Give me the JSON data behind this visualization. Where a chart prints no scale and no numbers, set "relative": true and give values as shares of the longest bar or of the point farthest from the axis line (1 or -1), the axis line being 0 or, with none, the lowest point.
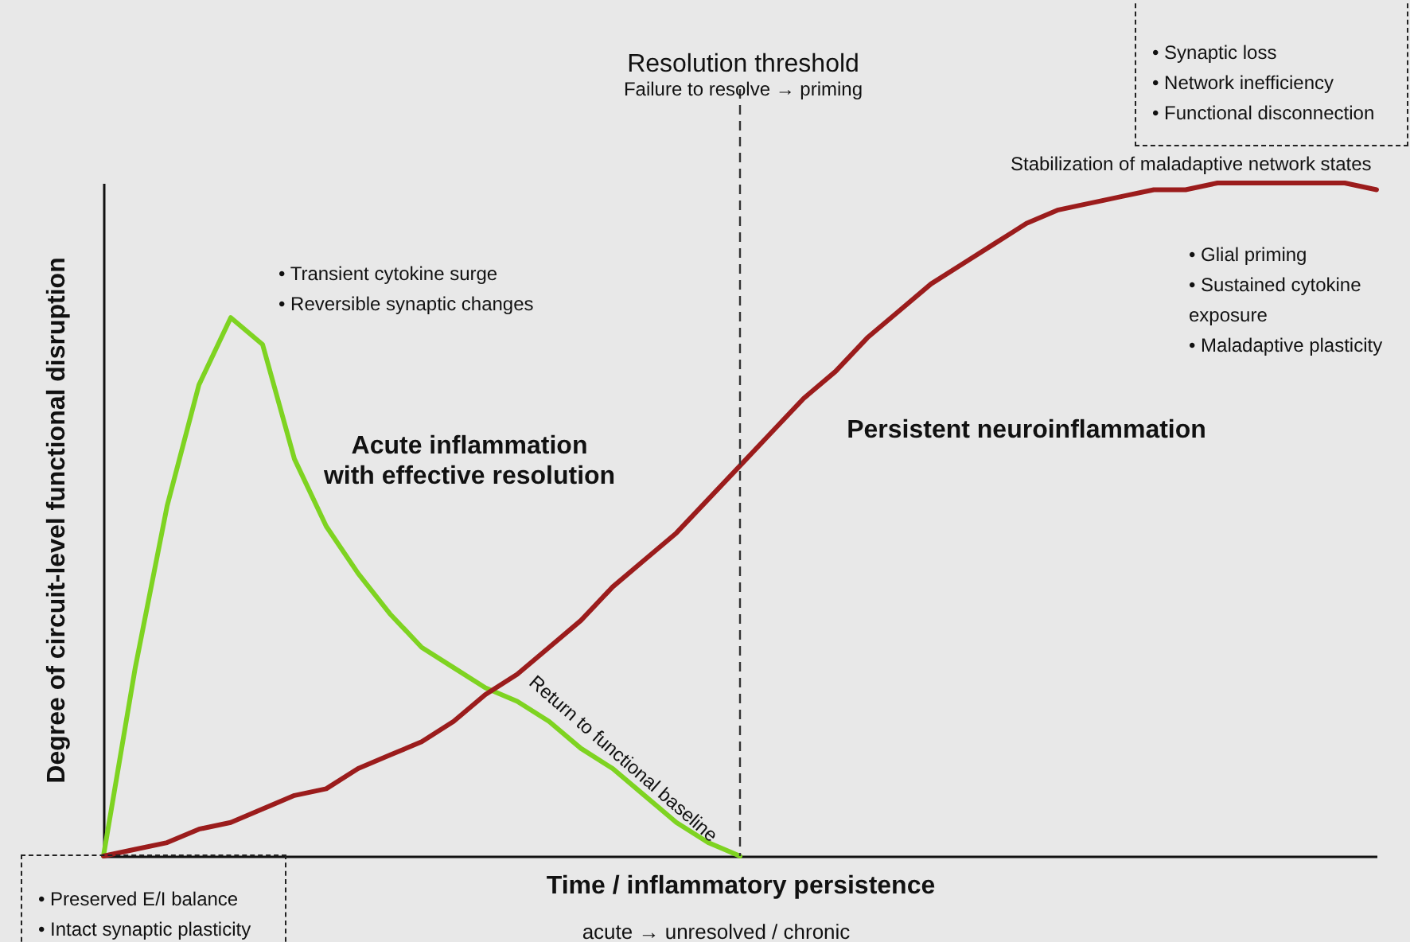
{
  "chart_data": {
    "type": "line",
    "relative": true,
    "xlabel": "Time / inflammatory persistence",
    "ylabel": "Degree of circuit-level functional disruption",
    "categories": [
      null,
      null,
      null,
      null,
      null,
      null,
      null,
      null,
      null,
      null,
      null,
      null,
      null,
      null,
      null,
      null,
      null,
      null,
      null,
      null,
      null,
      null,
      null,
      null,
      null,
      null,
      null,
      null,
      null,
      null,
      null,
      null,
      null,
      null,
      null,
      null,
      null,
      null,
      null,
      null,
      null
    ],
    "series": [
      {
        "color": "#7ed321",
        "values": [
          0,
          0.28,
          0.52,
          0.7,
          0.8,
          0.76,
          0.59,
          0.49,
          0.42,
          0.36,
          0.31,
          0.28,
          0.25,
          0.23,
          0.2,
          0.16,
          0.13,
          0.09,
          0.05,
          0.02,
          0,
          null,
          null,
          null,
          null,
          null,
          null,
          null,
          null,
          null,
          null,
          null,
          null,
          null,
          null,
          null,
          null,
          null,
          null,
          null,
          null
        ]
      },
      {
        "color": "#9b1c1c",
        "values": [
          0,
          0.01,
          0.02,
          0.04,
          0.05,
          0.07,
          0.09,
          0.1,
          0.13,
          0.15,
          0.17,
          0.2,
          0.24,
          0.27,
          0.31,
          0.35,
          0.4,
          0.44,
          0.48,
          0.53,
          0.58,
          0.63,
          0.68,
          0.72,
          0.77,
          0.81,
          0.85,
          0.88,
          0.91,
          0.94,
          0.96,
          0.97,
          0.98,
          0.99,
          0.99,
          1.0,
          1.0,
          1.0,
          1.0,
          1.0,
          0.99
        ]
      }
    ],
    "annotations": [
      "Acute inflammation\nwith effective resolution",
      "Persistent neuroinflammation",
      "• Transient cytokine surge\n• Reversible synaptic changes",
      "Return to functional baseline",
      "Stabilization of maladaptive network states",
      "• Glial priming\n• Sustained cytokine\n   exposure\n• Maladaptive plasticity",
      "• Synaptic loss\n• Network inefficiency\n• Functional disconnection",
      "• Preserved E/I balance\n• Intact synaptic plasticity",
      "acute → unresolved / chronic",
      "Resolution threshold",
      "Failure to resolve → priming"
    ],
    "grid": false,
    "legend": false,
    "marker": "none",
    "line_style": "solid"
  }
}
